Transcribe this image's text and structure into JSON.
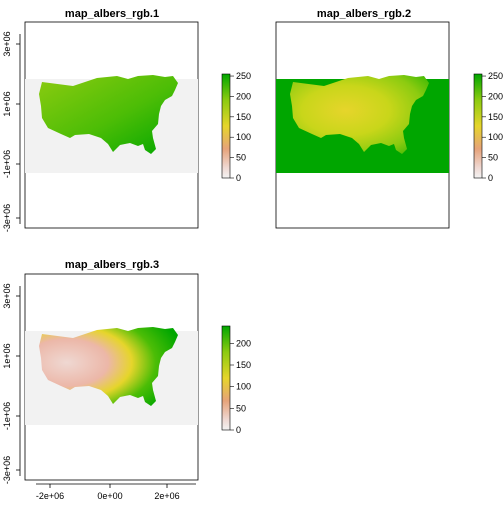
{
  "colors": {
    "bbox_bg": "#f2f2f2",
    "legend_low": "#f3f3f3",
    "ramp": [
      "#f2f2f2",
      "#efd8d2",
      "#ecb7a8",
      "#e6a37a",
      "#e5c24a",
      "#e6d52b",
      "#c9d61a",
      "#8ccb10",
      "#4cbd06",
      "#00a600"
    ]
  },
  "chart_data": [
    {
      "type": "heatmap",
      "title": "map_albers_rgb.1",
      "x_ticks": [],
      "y_ticks": [
        "3e+06",
        "1e+06",
        "-1e+06",
        "-3e+06"
      ],
      "legend_ticks": [
        "250",
        "200",
        "150",
        "100",
        "50",
        "0"
      ],
      "legend_range": [
        0,
        255
      ],
      "fill_style": "green-dominant",
      "bbox_fill": "light-gray"
    },
    {
      "type": "heatmap",
      "title": "map_albers_rgb.2",
      "x_ticks": [],
      "y_ticks": [],
      "legend_ticks": [
        "250",
        "200",
        "150",
        "100",
        "50",
        "0"
      ],
      "legend_range": [
        0,
        255
      ],
      "fill_style": "yellow-center",
      "bbox_fill": "green"
    },
    {
      "type": "heatmap",
      "title": "map_albers_rgb.3",
      "x_ticks": [
        "-2e+06",
        "0e+00",
        "2e+06"
      ],
      "y_ticks": [
        "3e+06",
        "1e+06",
        "-1e+06",
        "-3e+06"
      ],
      "legend_ticks": [
        "200",
        "150",
        "100",
        "50",
        "0"
      ],
      "legend_range": [
        0,
        240
      ],
      "fill_style": "pink-west",
      "bbox_fill": "light-gray"
    }
  ]
}
